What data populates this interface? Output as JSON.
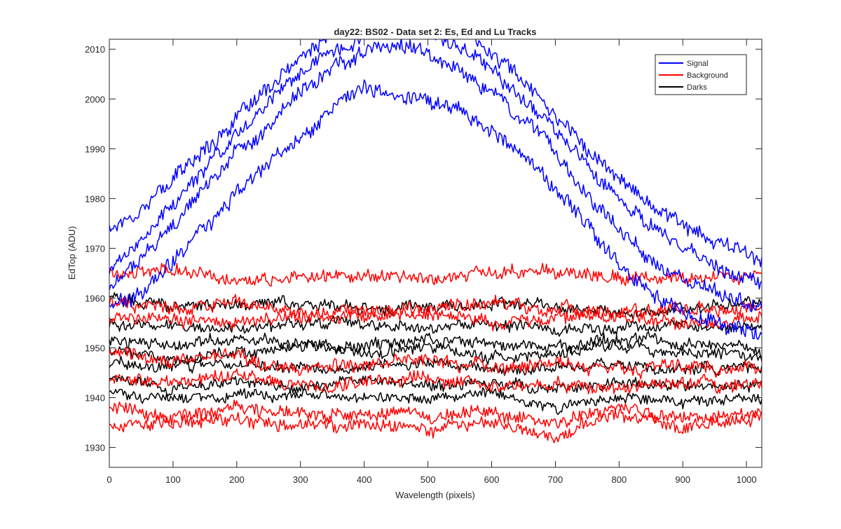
{
  "chart_data": {
    "type": "line",
    "title": "day22: BS02 - Data set 2: Es, Ed and Lu Tracks",
    "xlabel": "Wavelength (pixels)",
    "ylabel": "EdTop (ADU)",
    "xlim": [
      0,
      1024
    ],
    "ylim": [
      1926,
      2012
    ],
    "xticks": [
      0,
      100,
      200,
      300,
      400,
      500,
      600,
      700,
      800,
      900,
      1000
    ],
    "yticks": [
      1930,
      1940,
      1950,
      1960,
      1970,
      1980,
      1990,
      2000,
      2010
    ],
    "grid": false,
    "legend_position": "top-right",
    "legend": [
      {
        "name": "Signal",
        "color": "#0000ff"
      },
      {
        "name": "Background",
        "color": "#ff0000"
      },
      {
        "name": "Darks",
        "color": "#000000"
      }
    ],
    "series": [
      {
        "group": "Signal",
        "color": "#0000ff",
        "x": [
          0,
          50,
          100,
          150,
          200,
          250,
          300,
          350,
          400,
          450,
          500,
          550,
          600,
          650,
          700,
          750,
          800,
          850,
          900,
          950,
          1024
        ],
        "values": [
          1974,
          1978,
          1984,
          1990,
          1996,
          2002,
          2008,
          2013,
          2017,
          2018,
          2017,
          2014,
          2009,
          2004,
          1997,
          1990,
          1984,
          1979,
          1975,
          1971,
          1968
        ]
      },
      {
        "group": "Signal",
        "color": "#0000ff",
        "x": [
          0,
          50,
          100,
          150,
          200,
          250,
          300,
          350,
          400,
          450,
          500,
          550,
          600,
          650,
          700,
          750,
          800,
          850,
          900,
          950,
          1024
        ],
        "values": [
          1966,
          1972,
          1979,
          1986,
          1993,
          1999,
          2005,
          2010,
          2013,
          2015,
          2013,
          2010,
          2006,
          2000,
          1994,
          1987,
          1980,
          1975,
          1970,
          1966,
          1963
        ]
      },
      {
        "group": "Signal",
        "color": "#0000ff",
        "x": [
          0,
          50,
          100,
          150,
          200,
          250,
          300,
          350,
          400,
          450,
          500,
          550,
          600,
          650,
          700,
          750,
          800,
          850,
          900,
          950,
          1024
        ],
        "values": [
          1962,
          1968,
          1975,
          1982,
          1989,
          1995,
          2001,
          2006,
          2009,
          2011,
          2009,
          2006,
          2001,
          1996,
          1989,
          1981,
          1974,
          1968,
          1964,
          1961,
          1958
        ]
      },
      {
        "group": "Signal",
        "color": "#0000ff",
        "x": [
          0,
          50,
          100,
          150,
          200,
          250,
          300,
          350,
          400,
          450,
          500,
          550,
          600,
          650,
          700,
          750,
          800,
          850,
          900,
          950,
          1024
        ],
        "values": [
          1958,
          1961,
          1967,
          1974,
          1981,
          1987,
          1993,
          1998,
          2003,
          2001,
          2000,
          1998,
          1994,
          1989,
          1982,
          1975,
          1967,
          1961,
          1957,
          1955,
          1953
        ]
      },
      {
        "group": "Background",
        "color": "#ff0000",
        "x": [
          0,
          100,
          200,
          300,
          400,
          500,
          600,
          700,
          800,
          900,
          1024
        ],
        "values": [
          1965,
          1966,
          1964,
          1964,
          1965,
          1964,
          1965,
          1965,
          1964,
          1964,
          1964
        ]
      },
      {
        "group": "Background",
        "color": "#ff0000",
        "x": [
          0,
          100,
          200,
          300,
          400,
          500,
          600,
          700,
          800,
          900,
          1024
        ],
        "values": [
          1959,
          1958,
          1959,
          1957,
          1958,
          1958,
          1959,
          1958,
          1957,
          1958,
          1958
        ]
      },
      {
        "group": "Background",
        "color": "#ff0000",
        "x": [
          0,
          100,
          200,
          300,
          400,
          500,
          600,
          700,
          800,
          900,
          1024
        ],
        "values": [
          1956,
          1956,
          1955,
          1956,
          1956,
          1957,
          1955,
          1956,
          1956,
          1955,
          1956
        ]
      },
      {
        "group": "Background",
        "color": "#ff0000",
        "x": [
          0,
          100,
          200,
          300,
          400,
          500,
          600,
          700,
          800,
          900,
          1024
        ],
        "values": [
          1949,
          1947,
          1948,
          1946,
          1947,
          1948,
          1946,
          1947,
          1946,
          1946,
          1946
        ]
      },
      {
        "group": "Background",
        "color": "#ff0000",
        "x": [
          0,
          100,
          200,
          300,
          400,
          500,
          600,
          700,
          800,
          900,
          1024
        ],
        "values": [
          1944,
          1943,
          1945,
          1942,
          1943,
          1944,
          1942,
          1943,
          1942,
          1943,
          1942
        ]
      },
      {
        "group": "Background",
        "color": "#ff0000",
        "x": [
          0,
          100,
          200,
          300,
          400,
          500,
          600,
          700,
          800,
          900,
          1024
        ],
        "values": [
          1938,
          1936,
          1938,
          1937,
          1937,
          1936,
          1937,
          1935,
          1938,
          1936,
          1937
        ]
      },
      {
        "group": "Background",
        "color": "#ff0000",
        "x": [
          0,
          100,
          200,
          300,
          400,
          500,
          600,
          700,
          800,
          900,
          1024
        ],
        "values": [
          1934,
          1935,
          1936,
          1934,
          1935,
          1934,
          1935,
          1932,
          1937,
          1934,
          1936
        ]
      },
      {
        "group": "Darks",
        "color": "#000000",
        "x": [
          0,
          100,
          200,
          300,
          400,
          500,
          600,
          700,
          800,
          900,
          1024
        ],
        "values": [
          1960,
          1958,
          1959,
          1959,
          1958,
          1958,
          1959,
          1958,
          1957,
          1958,
          1959
        ]
      },
      {
        "group": "Darks",
        "color": "#000000",
        "x": [
          0,
          100,
          200,
          300,
          400,
          500,
          600,
          700,
          800,
          900,
          1024
        ],
        "values": [
          1955,
          1954,
          1954,
          1955,
          1955,
          1954,
          1955,
          1954,
          1954,
          1955,
          1954
        ]
      },
      {
        "group": "Darks",
        "color": "#000000",
        "x": [
          0,
          100,
          200,
          300,
          400,
          500,
          600,
          700,
          800,
          900,
          1024
        ],
        "values": [
          1952,
          1950,
          1952,
          1951,
          1950,
          1952,
          1951,
          1950,
          1952,
          1951,
          1950
        ]
      },
      {
        "group": "Darks",
        "color": "#000000",
        "x": [
          0,
          100,
          200,
          300,
          400,
          500,
          600,
          700,
          800,
          900,
          1024
        ],
        "values": [
          1950,
          1948,
          1949,
          1950,
          1949,
          1950,
          1948,
          1949,
          1950,
          1949,
          1948
        ]
      },
      {
        "group": "Darks",
        "color": "#000000",
        "x": [
          0,
          100,
          200,
          300,
          400,
          500,
          600,
          700,
          800,
          900,
          1024
        ],
        "values": [
          1947,
          1946,
          1947,
          1946,
          1946,
          1947,
          1946,
          1946,
          1947,
          1946,
          1946
        ]
      },
      {
        "group": "Darks",
        "color": "#000000",
        "x": [
          0,
          100,
          200,
          300,
          400,
          500,
          600,
          700,
          800,
          900,
          1024
        ],
        "values": [
          1944,
          1942,
          1943,
          1942,
          1944,
          1942,
          1943,
          1942,
          1943,
          1942,
          1943
        ]
      },
      {
        "group": "Darks",
        "color": "#000000",
        "x": [
          0,
          100,
          200,
          300,
          400,
          500,
          600,
          700,
          800,
          900,
          1024
        ],
        "values": [
          1941,
          1940,
          1940,
          1941,
          1940,
          1940,
          1941,
          1938,
          1940,
          1939,
          1940
        ]
      }
    ]
  }
}
